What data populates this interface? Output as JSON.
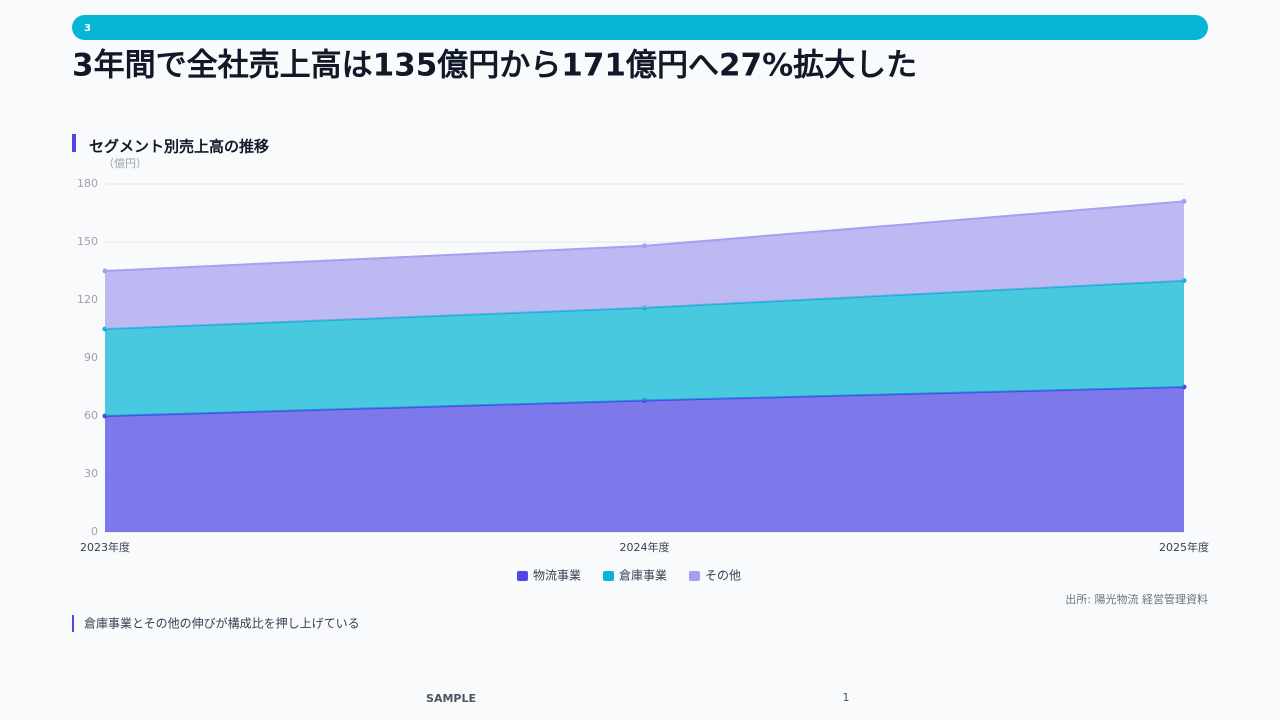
{
  "header": {
    "section": "3",
    "title": "3年間で全社売上高は135億円から171億円へ27%拡大した"
  },
  "chart_data": {
    "type": "area",
    "stacked": true,
    "title": "セグメント別売上高の推移",
    "y_label": "（億円）",
    "categories": [
      "2023年度",
      "2024年度",
      "2025年度"
    ],
    "series": [
      {
        "name": "物流事業",
        "color": "#4f46e5",
        "values": [
          60,
          68,
          75
        ]
      },
      {
        "name": "倉庫事業",
        "color": "#06b6d4",
        "values": [
          45,
          48,
          55
        ]
      },
      {
        "name": "その他",
        "color": "#a5a0f0",
        "values": [
          30,
          32,
          41
        ]
      }
    ],
    "ylim": [
      0,
      180
    ],
    "yticks": [
      0,
      30,
      60,
      90,
      120,
      150,
      180
    ],
    "grid": true,
    "legend": "bottom"
  },
  "source": "出所: 陽光物流 経営管理資料",
  "note": "倉庫事業とその他の伸びが構成比を押し上げている",
  "footer": {
    "label": "SAMPLE",
    "page": "1"
  }
}
